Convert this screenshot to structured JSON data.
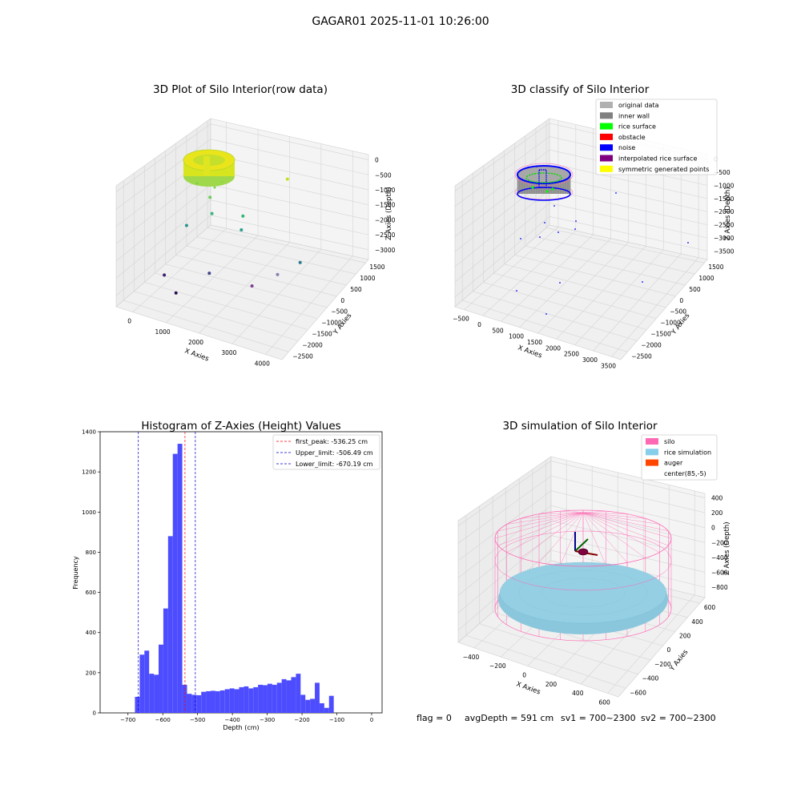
{
  "figure": {
    "suptitle": "GAGAR01 2025-11-01 10:26:00",
    "footer": {
      "flag": "flag = 0",
      "avg_depth": "avgDepth = 591 cm",
      "sv1": "sv1 = 700~2300",
      "sv2": "sv2 = 700~2300"
    }
  },
  "chart_data": [
    {
      "type": "scatter",
      "title": "3D Plot of Silo Interior(row data)",
      "xlabel": "X Axies",
      "ylabel": "Y Axies",
      "zlabel": "Z Axies (Depth)",
      "x_ticks": [
        "0",
        "1000",
        "2000",
        "3000",
        "4000"
      ],
      "y_ticks": [
        "1500",
        "1000",
        "500",
        "0",
        "−500",
        "−1000",
        "−1500",
        "−2000",
        "−2500"
      ],
      "z_ticks": [
        "0",
        "−500",
        "−1000",
        "−1500",
        "−2000",
        "−2500",
        "−3000"
      ],
      "points": [
        {
          "x": 2500,
          "y": 700,
          "z": -550,
          "color": "#c8e020"
        },
        {
          "x": 600,
          "y": 200,
          "z": -1400,
          "color": "#6ccd5a"
        },
        {
          "x": 900,
          "y": -200,
          "z": -1650,
          "color": "#38b77b"
        },
        {
          "x": 1600,
          "y": 100,
          "z": -1700,
          "color": "#35b779"
        },
        {
          "x": 1800,
          "y": -300,
          "z": -1900,
          "color": "#2a9d8a"
        },
        {
          "x": 300,
          "y": -400,
          "z": -2100,
          "color": "#2a928c"
        },
        {
          "x": 3600,
          "y": -500,
          "z": -2400,
          "color": "#2a788e"
        },
        {
          "x": 3200,
          "y": -900,
          "z": -2700,
          "color": "#8e7bb0"
        },
        {
          "x": 1500,
          "y": -1300,
          "z": -2900,
          "color": "#414487"
        },
        {
          "x": 2900,
          "y": -1600,
          "z": -2800,
          "color": "#7b3f90"
        },
        {
          "x": 400,
          "y": -1600,
          "z": -3100,
          "color": "#3b1f6e"
        },
        {
          "x": 1100,
          "y": -2200,
          "z": -3200,
          "color": "#2a0f52"
        }
      ]
    },
    {
      "type": "scatter",
      "title": "3D classify of Silo Interior",
      "xlabel": "X Axies",
      "ylabel": "Y Axies",
      "zlabel": "Z Axies (Depth)",
      "x_ticks": [
        "−500",
        "0",
        "500",
        "1000",
        "1500",
        "2000",
        "2500",
        "3000",
        "3500"
      ],
      "y_ticks": [
        "1500",
        "1000",
        "500",
        "0",
        "−500",
        "−1000",
        "−1500",
        "−2000",
        "−2500"
      ],
      "z_ticks": [
        "0",
        "−500",
        "−1000",
        "−1500",
        "−2000",
        "−2500",
        "−3000",
        "−3500"
      ],
      "legend_position": "top-right",
      "legend": [
        {
          "label": "original data",
          "color": "#b0b0b0"
        },
        {
          "label": "inner wall",
          "color": "#808080"
        },
        {
          "label": "rice surface",
          "color": "#00ff00"
        },
        {
          "label": "obstacle",
          "color": "#ff0000"
        },
        {
          "label": "noise",
          "color": "#0000ff"
        },
        {
          "label": "interpolated rice surface",
          "color": "#800080"
        },
        {
          "label": "symmetric generated points",
          "color": "#ffff00"
        }
      ]
    },
    {
      "type": "bar",
      "title": "Histogram of Z-Axies (Height) Values",
      "xlabel": "Depth (cm)",
      "ylabel": "Frequency",
      "xlim": [
        -780,
        30
      ],
      "ylim": [
        0,
        1400
      ],
      "x_ticks": [
        "−700",
        "−600",
        "−500",
        "−400",
        "−300",
        "−200",
        "−100",
        "0"
      ],
      "y_ticks": [
        "0",
        "200",
        "400",
        "600",
        "800",
        "1000",
        "1200",
        "1400"
      ],
      "bar_color": "#4d4dff",
      "bin_start": -680,
      "bin_width": 13.6,
      "values": [
        80,
        290,
        310,
        195,
        190,
        340,
        520,
        880,
        1290,
        1340,
        140,
        95,
        90,
        88,
        105,
        108,
        110,
        108,
        112,
        118,
        122,
        118,
        128,
        132,
        122,
        128,
        140,
        138,
        145,
        140,
        150,
        168,
        162,
        178,
        195,
        90,
        65,
        70,
        150,
        48,
        25,
        85
      ],
      "lines": [
        {
          "label": "first_peak: -536.25 cm",
          "x": -536.25,
          "color": "#ff0000"
        },
        {
          "label": "Upper_limit: -506.49 cm",
          "x": -506.49,
          "color": "#0000cc"
        },
        {
          "label": "Lower_limit: -670.19 cm",
          "x": -670.19,
          "color": "#0000cc"
        }
      ],
      "legend_position": "top-right"
    },
    {
      "type": "scatter",
      "title": "3D simulation of Silo Interior",
      "xlabel": "X Axies",
      "ylabel": "Y Axies",
      "zlabel": "Z Axies (Depth)",
      "x_ticks": [
        "−400",
        "−200",
        "0",
        "200",
        "400",
        "600"
      ],
      "y_ticks": [
        "600",
        "400",
        "200",
        "0",
        "−200",
        "−400",
        "−600"
      ],
      "z_ticks": [
        "400",
        "200",
        "0",
        "−200",
        "−400",
        "−600",
        "−800"
      ],
      "legend_position": "top-right",
      "legend": [
        {
          "label": "silo",
          "color": "#ff69b4"
        },
        {
          "label": "rice simulation",
          "color": "#87ceeb"
        },
        {
          "label": "auger",
          "color": "#ff4500"
        },
        {
          "label": "center(85,-5)",
          "color": "#ffffff"
        }
      ]
    }
  ]
}
